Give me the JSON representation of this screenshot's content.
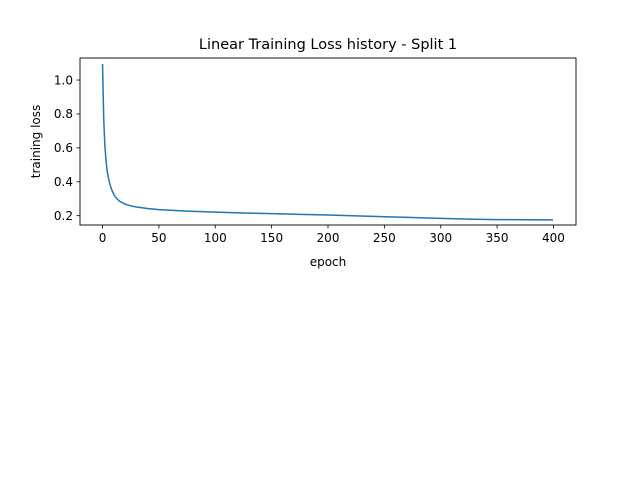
{
  "chart_data": {
    "type": "line",
    "title": "Linear Training Loss history - Split 1",
    "xlabel": "epoch",
    "ylabel": "training loss",
    "xlim": [
      -20,
      420
    ],
    "ylim": [
      0.145,
      1.13
    ],
    "x_ticks": [
      0,
      50,
      100,
      150,
      200,
      250,
      300,
      350,
      400
    ],
    "x_tick_labels": [
      "0",
      "50",
      "100",
      "150",
      "200",
      "250",
      "300",
      "350",
      "400"
    ],
    "y_ticks": [
      0.2,
      0.4,
      0.6,
      0.8,
      1.0
    ],
    "y_tick_labels": [
      "0.2",
      "0.4",
      "0.6",
      "0.8",
      "1.0"
    ],
    "grid": false,
    "legend": "none",
    "series": [
      {
        "color": "#1f77b4",
        "x": [
          0,
          1,
          2,
          3,
          4,
          5,
          6,
          7,
          8,
          10,
          12,
          15,
          20,
          25,
          30,
          40,
          50,
          60,
          75,
          100,
          125,
          150,
          175,
          200,
          225,
          250,
          275,
          300,
          325,
          350,
          375,
          399
        ],
        "y": [
          1.09,
          0.78,
          0.62,
          0.53,
          0.47,
          0.43,
          0.4,
          0.375,
          0.355,
          0.325,
          0.305,
          0.285,
          0.268,
          0.258,
          0.251,
          0.242,
          0.236,
          0.232,
          0.227,
          0.221,
          0.216,
          0.212,
          0.208,
          0.204,
          0.199,
          0.194,
          0.189,
          0.184,
          0.18,
          0.177,
          0.176,
          0.175
        ]
      }
    ]
  }
}
